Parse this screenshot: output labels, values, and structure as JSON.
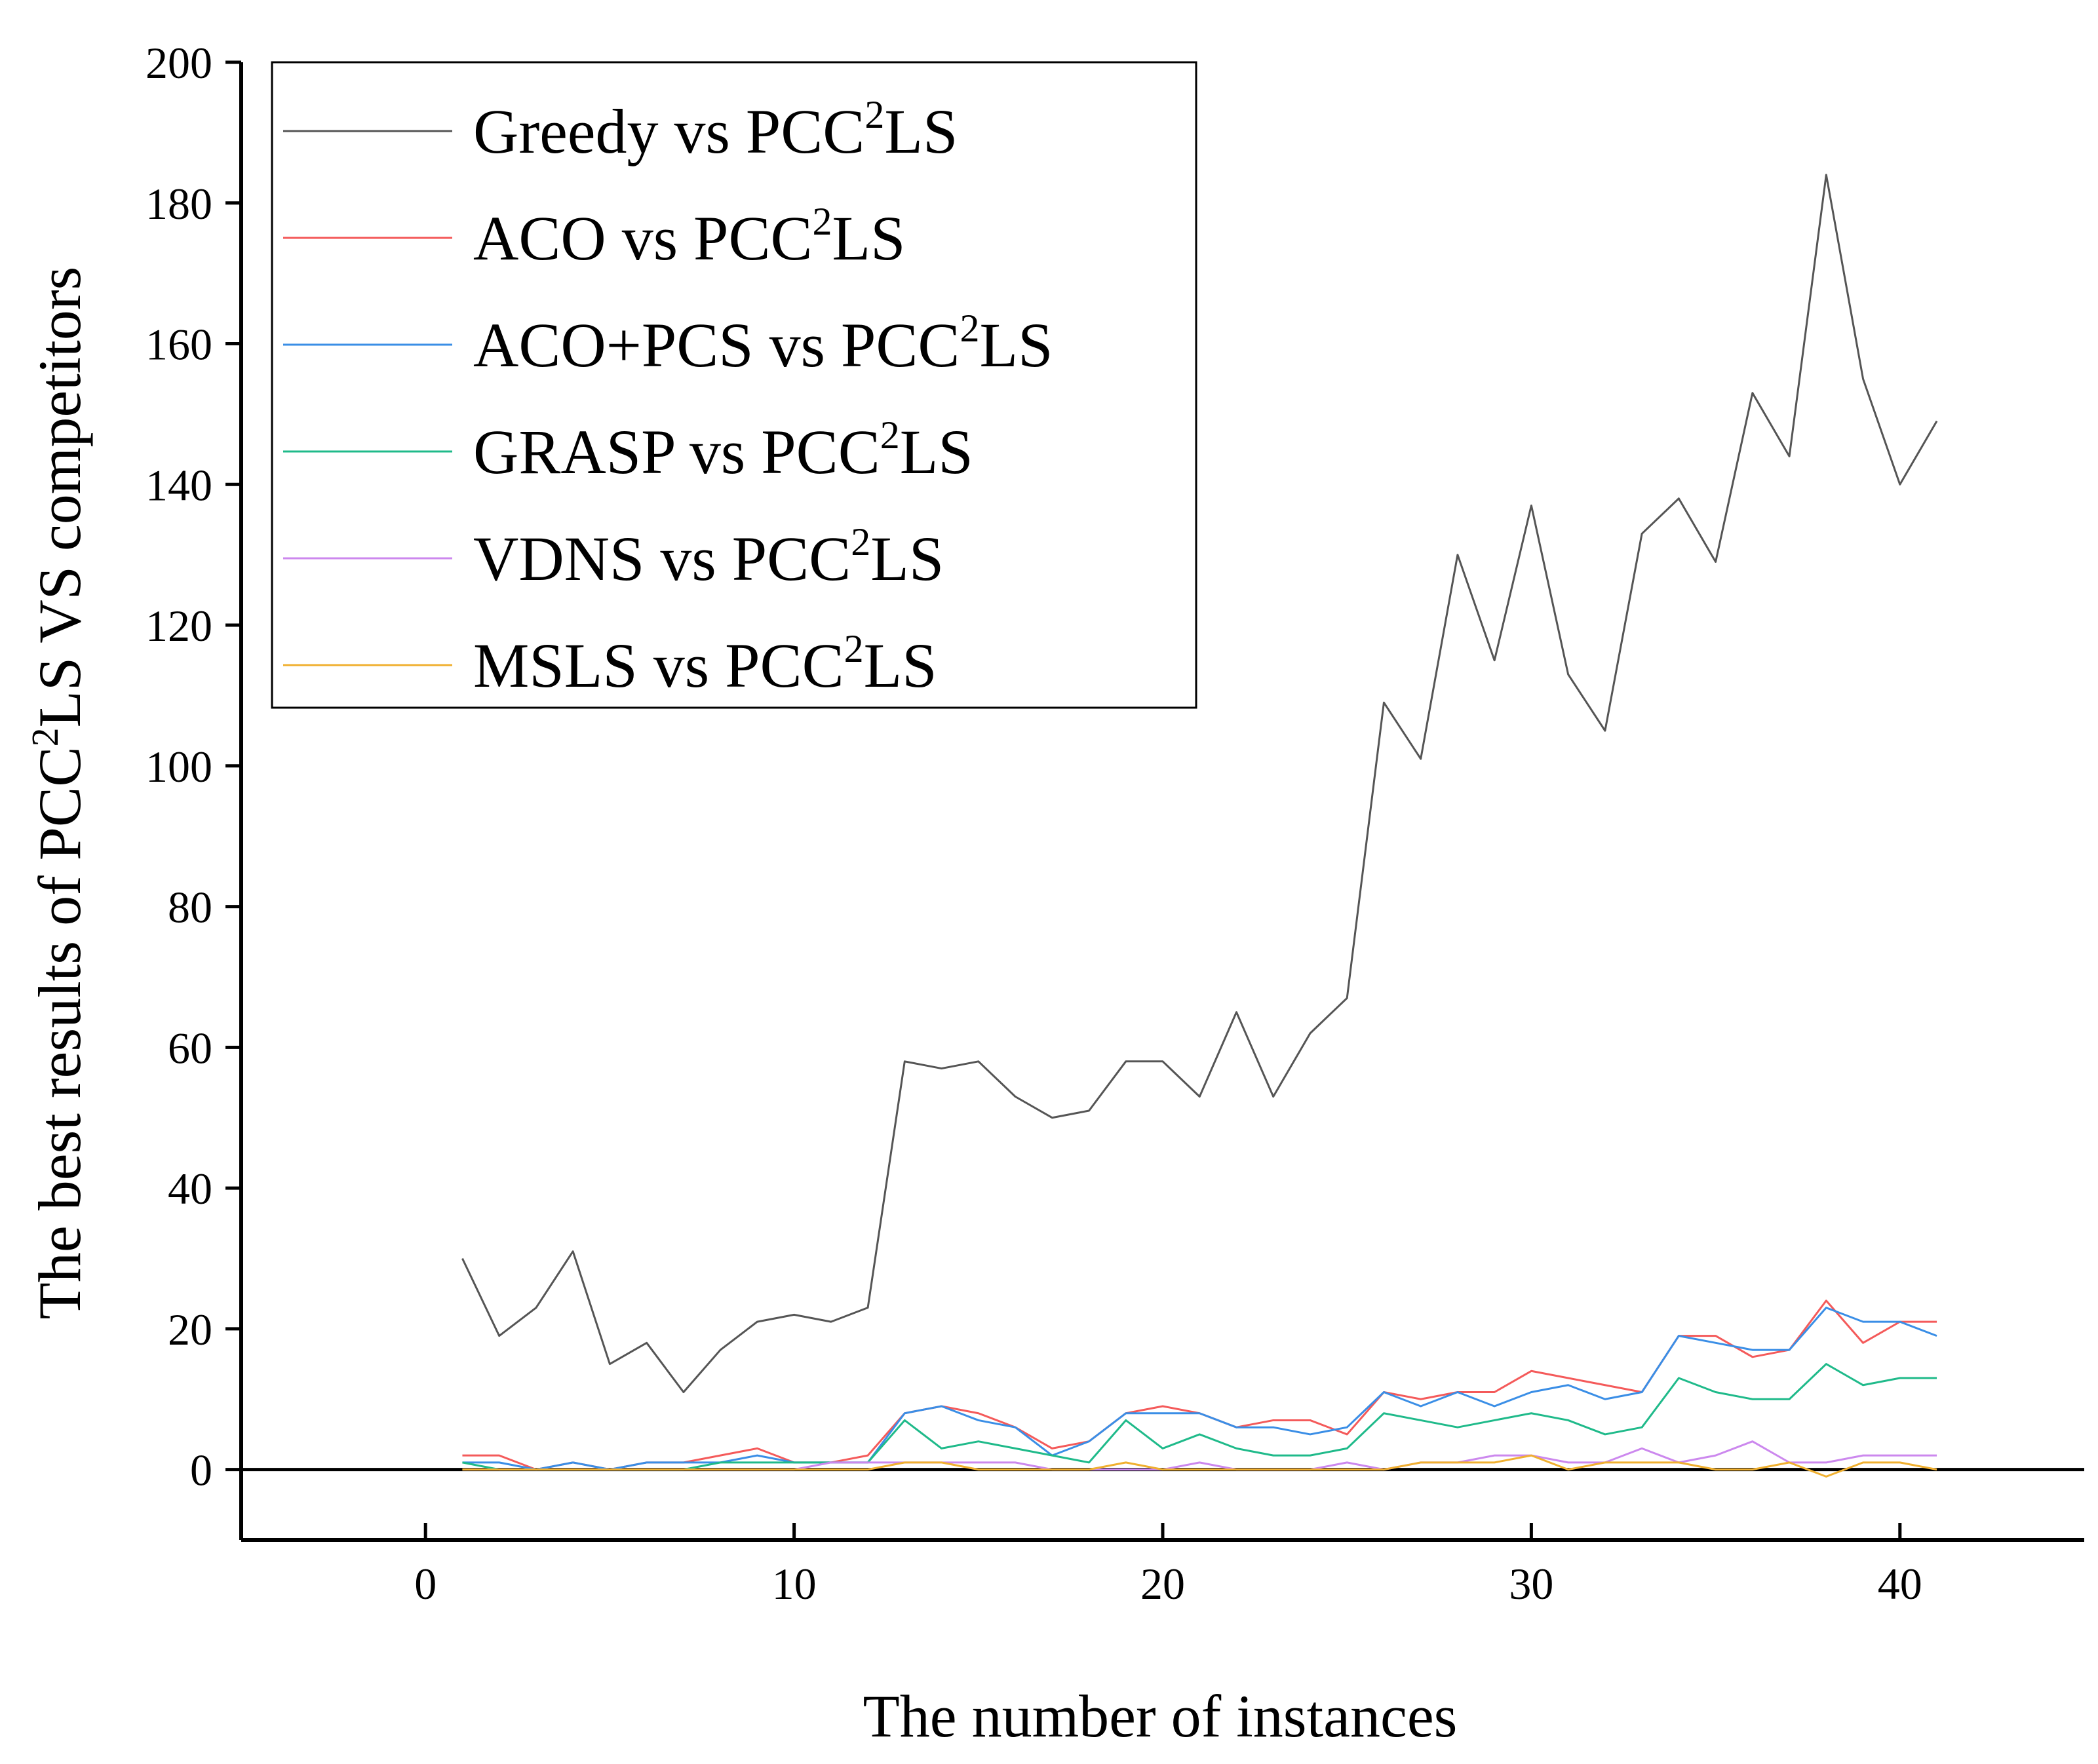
{
  "chart_data": {
    "type": "line",
    "title": "",
    "xlabel": "The number of instances",
    "ylabel": {
      "prefix": "The best results of PCC",
      "sup": "2",
      "suffix": "LS VS competitors"
    },
    "xlim": [
      -5,
      45
    ],
    "ylim": [
      -10,
      200
    ],
    "x_ticks": [
      0,
      10,
      20,
      30,
      40
    ],
    "y_ticks": [
      0,
      20,
      40,
      60,
      80,
      100,
      120,
      140,
      160,
      180,
      200
    ],
    "grid": false,
    "legend_position": "top-left",
    "zero_line": true,
    "x": [
      1,
      2,
      3,
      4,
      5,
      6,
      7,
      8,
      9,
      10,
      11,
      12,
      13,
      14,
      15,
      16,
      17,
      18,
      19,
      20,
      21,
      22,
      23,
      24,
      25,
      26,
      27,
      28,
      29,
      30,
      31,
      32,
      33,
      34,
      35,
      36,
      37,
      38,
      39,
      40,
      41
    ],
    "series": [
      {
        "name": "Greedy vs PCC²LS",
        "label_base": "Greedy vs PCC",
        "label_sup": "2",
        "label_end": "LS",
        "color": "#555555",
        "values": [
          30,
          19,
          23,
          31,
          15,
          18,
          11,
          17,
          21,
          22,
          21,
          23,
          58,
          57,
          58,
          53,
          50,
          51,
          58,
          58,
          53,
          65,
          53,
          62,
          67,
          109,
          101,
          130,
          115,
          137,
          113,
          105,
          133,
          138,
          129,
          153,
          144,
          184,
          155,
          140,
          149
        ]
      },
      {
        "name": "ACO vs PCC²LS",
        "label_base": "ACO vs PCC",
        "label_sup": "2",
        "label_end": "LS",
        "color": "#f45a5a",
        "values": [
          2,
          2,
          0,
          1,
          0,
          1,
          1,
          2,
          3,
          1,
          1,
          2,
          8,
          9,
          8,
          6,
          3,
          4,
          8,
          9,
          8,
          6,
          7,
          7,
          5,
          11,
          10,
          11,
          11,
          14,
          13,
          12,
          11,
          19,
          19,
          16,
          17,
          24,
          18,
          21,
          21
        ]
      },
      {
        "name": "ACO+PCS vs PCC²LS",
        "label_base": "ACO+PCS vs PCC",
        "label_sup": "2",
        "label_end": "LS",
        "color": "#3a8ee6",
        "values": [
          1,
          1,
          0,
          1,
          0,
          1,
          1,
          1,
          2,
          1,
          1,
          1,
          8,
          9,
          7,
          6,
          2,
          4,
          8,
          8,
          8,
          6,
          6,
          5,
          6,
          11,
          9,
          11,
          9,
          11,
          12,
          10,
          11,
          19,
          18,
          17,
          17,
          23,
          21,
          21,
          19
        ]
      },
      {
        "name": "GRASP vs PCC²LS",
        "label_base": "GRASP vs PCC",
        "label_sup": "2",
        "label_end": "LS",
        "color": "#1fba8a",
        "values": [
          1,
          0,
          0,
          0,
          0,
          0,
          0,
          1,
          1,
          1,
          1,
          1,
          7,
          3,
          4,
          3,
          2,
          1,
          7,
          3,
          5,
          3,
          2,
          2,
          3,
          8,
          7,
          6,
          7,
          8,
          7,
          5,
          6,
          13,
          11,
          10,
          10,
          15,
          12,
          13,
          13
        ]
      },
      {
        "name": "VDNS vs PCC²LS",
        "label_base": "VDNS vs PCC",
        "label_sup": "2",
        "label_end": "LS",
        "color": "#cc88ee",
        "values": [
          0,
          0,
          0,
          0,
          0,
          0,
          0,
          0,
          0,
          0,
          1,
          1,
          1,
          1,
          1,
          1,
          0,
          0,
          0,
          0,
          1,
          0,
          0,
          0,
          1,
          0,
          1,
          1,
          2,
          2,
          1,
          1,
          3,
          1,
          2,
          4,
          1,
          1,
          2,
          2,
          2
        ]
      },
      {
        "name": "MSLS vs PCC²LS",
        "label_base": "MSLS vs PCC",
        "label_sup": "2",
        "label_end": "LS",
        "color": "#f0b030",
        "values": [
          0,
          0,
          0,
          0,
          0,
          0,
          0,
          0,
          0,
          0,
          0,
          0,
          1,
          1,
          0,
          0,
          0,
          0,
          1,
          0,
          0,
          0,
          0,
          0,
          0,
          0,
          1,
          1,
          1,
          2,
          0,
          1,
          1,
          1,
          0,
          0,
          1,
          -1,
          1,
          1,
          0
        ]
      }
    ]
  }
}
